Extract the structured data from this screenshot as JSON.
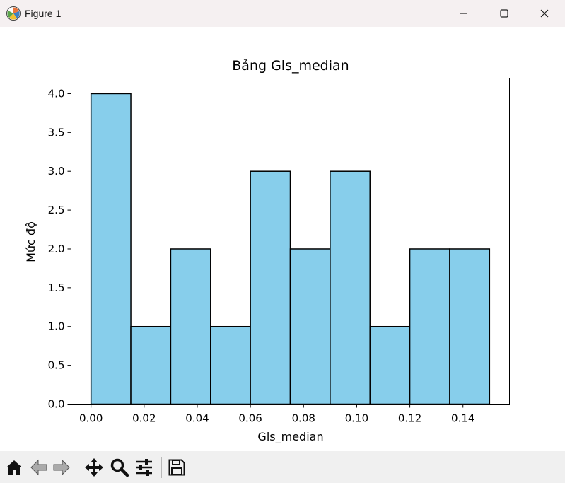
{
  "window": {
    "title": "Figure 1",
    "icon": "matplotlib-icon",
    "controls": [
      "minimize-icon",
      "maximize-icon",
      "close-icon"
    ]
  },
  "toolbar": {
    "tools": [
      "home-icon",
      "back-icon",
      "forward-icon",
      "pan-icon",
      "zoom-icon",
      "configure-subplots-icon",
      "save-icon"
    ]
  },
  "chart_data": {
    "type": "bar",
    "title": "Bảng Gls_median",
    "xlabel": "Gls_median",
    "ylabel": "Mức độ",
    "bin_edges": [
      0.0,
      0.015,
      0.03,
      0.045,
      0.06,
      0.075,
      0.09,
      0.105,
      0.12,
      0.135,
      0.15
    ],
    "values": [
      4,
      1,
      2,
      1,
      3,
      2,
      3,
      1,
      2,
      2
    ],
    "xlim": [
      -0.0075,
      0.1575
    ],
    "ylim": [
      0,
      4.2
    ],
    "xticks": [
      0.0,
      0.02,
      0.04,
      0.06,
      0.08,
      0.1,
      0.12,
      0.14
    ],
    "xtick_labels": [
      "0.00",
      "0.02",
      "0.04",
      "0.06",
      "0.08",
      "0.10",
      "0.12",
      "0.14"
    ],
    "yticks": [
      0.0,
      0.5,
      1.0,
      1.5,
      2.0,
      2.5,
      3.0,
      3.5,
      4.0
    ],
    "ytick_labels": [
      "0.0",
      "0.5",
      "1.0",
      "1.5",
      "2.0",
      "2.5",
      "3.0",
      "3.5",
      "4.0"
    ],
    "bar_color": "#87ceeb",
    "edge_color": "#000000",
    "grid": false,
    "legend": null
  }
}
